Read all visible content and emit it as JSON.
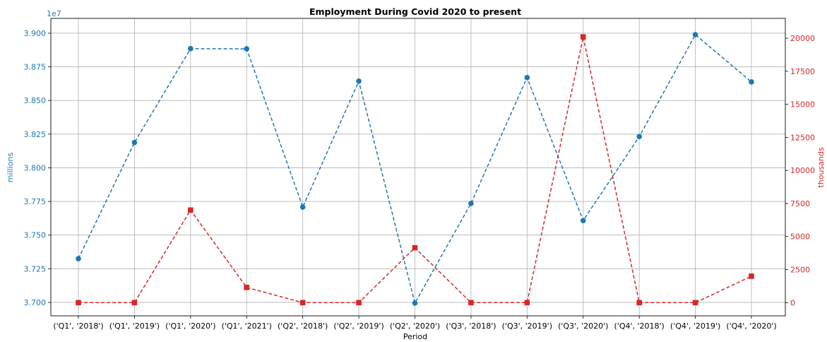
{
  "chart_data": {
    "type": "line",
    "title": "Employment During Covid 2020 to present",
    "xlabel": "Period",
    "ylabel_left": "millions",
    "ylabel_right": "thousands",
    "left_offset_label": "1e7",
    "categories": [
      "('Q1', '2018')",
      "('Q1', '2019')",
      "('Q1', '2020')",
      "('Q1', '2021')",
      "('Q2', '2018')",
      "('Q2', '2019')",
      "('Q2', '2020')",
      "('Q3', '2018')",
      "('Q3', '2019')",
      "('Q3', '2020')",
      "('Q4', '2018')",
      "('Q4', '2019')",
      "('Q4', '2020')"
    ],
    "left_ticks": [
      "3.700",
      "3.725",
      "3.750",
      "3.775",
      "3.800",
      "3.825",
      "3.850",
      "3.875",
      "3.900"
    ],
    "right_ticks": [
      "0",
      "2500",
      "5000",
      "7500",
      "10000",
      "12500",
      "15000",
      "17500",
      "20000"
    ],
    "ylim_left": [
      3.69,
      3.911
    ],
    "ylim_right": [
      -1000,
      21500
    ],
    "grid": true,
    "series": [
      {
        "name": "millions",
        "axis": "left",
        "color": "#1f77b4",
        "marker": "circle",
        "linestyle": "dashed",
        "values": [
          3.7325,
          3.8188,
          3.8885,
          3.8884,
          3.7708,
          3.8644,
          3.6995,
          3.7735,
          3.867,
          3.7608,
          3.8232,
          3.8989,
          3.8638
        ]
      },
      {
        "name": "thousands",
        "axis": "right",
        "color": "#d62728",
        "marker": "square",
        "linestyle": "dashed",
        "values": [
          0,
          0,
          7000,
          1150,
          0,
          0,
          4150,
          0,
          0,
          20100,
          0,
          0,
          2000
        ]
      }
    ]
  }
}
